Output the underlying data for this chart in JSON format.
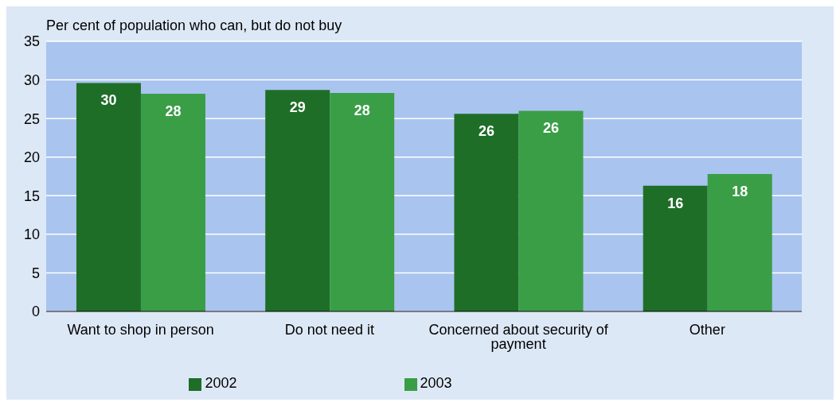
{
  "chart_data": {
    "type": "bar",
    "ylabel": "Per cent of population who can, but do not buy",
    "categories": [
      "Want to shop in person",
      "Do not need it",
      "Concerned about security of payment",
      "Other"
    ],
    "series": [
      {
        "name": "2002",
        "color": "#1e6e28",
        "values": [
          29.6,
          28.7,
          25.6,
          16.3
        ],
        "value_labels": [
          "30",
          "29",
          "26",
          "16"
        ]
      },
      {
        "name": "2003",
        "color": "#3a9e46",
        "values": [
          28.2,
          28.3,
          26.0,
          17.8
        ],
        "value_labels": [
          "28",
          "28",
          "26",
          "18"
        ]
      }
    ],
    "ylim": [
      0,
      35
    ],
    "yticks": [
      0,
      5,
      10,
      15,
      20,
      25,
      30,
      35
    ],
    "grid": "y",
    "legend": "bottom"
  }
}
